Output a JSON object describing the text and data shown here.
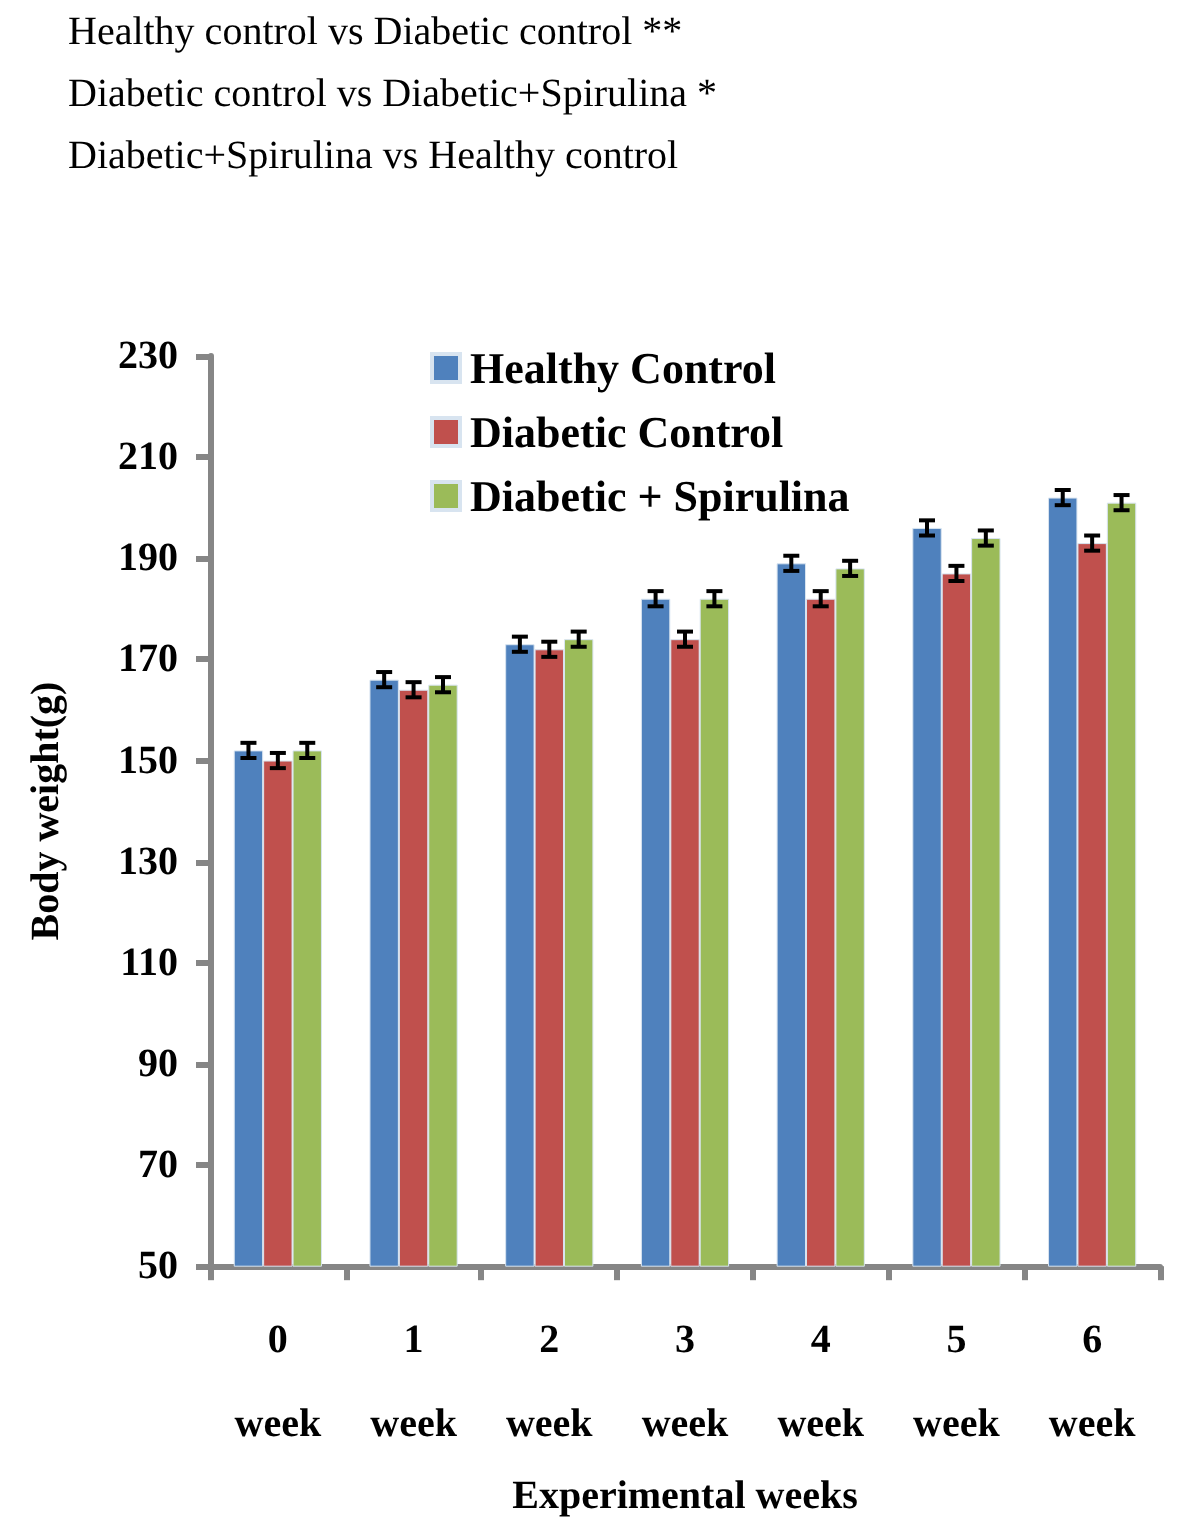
{
  "chart_data": {
    "type": "bar",
    "annotations": [
      "Healthy control vs Diabetic control **",
      "Diabetic control vs Diabetic+Spirulina *",
      "Diabetic+Spirulina vs Healthy control"
    ],
    "xlabel": "Experimental weeks",
    "ylabel": "Body weight(g)",
    "categories": [
      "0\nweek",
      "1\nweek",
      "2\nweek",
      "3\nweek",
      "4\nweek",
      "5\nweek",
      "6\nweek"
    ],
    "series": [
      {
        "name": "Healthy Control",
        "color": "#4f81bd",
        "values": [
          152,
          166,
          173,
          182,
          189,
          196,
          202
        ],
        "errors": [
          1.5,
          1.5,
          1.5,
          1.5,
          1.5,
          1.5,
          1.5
        ]
      },
      {
        "name": "Diabetic Control",
        "color": "#c0504d",
        "values": [
          150,
          164,
          172,
          174,
          182,
          187,
          193
        ],
        "errors": [
          1.5,
          1.5,
          1.5,
          1.5,
          1.5,
          1.5,
          1.5
        ]
      },
      {
        "name": "Diabetic + Spirulina",
        "color": "#9bbb59",
        "values": [
          152,
          165,
          174,
          182,
          188,
          194,
          201
        ],
        "errors": [
          1.5,
          1.5,
          1.5,
          1.5,
          1.5,
          1.5,
          1.5
        ]
      }
    ],
    "ylim": [
      50,
      230
    ],
    "yticks": [
      50,
      70,
      90,
      110,
      130,
      150,
      170,
      190,
      210,
      230
    ],
    "grid": false,
    "legend": "top left"
  }
}
